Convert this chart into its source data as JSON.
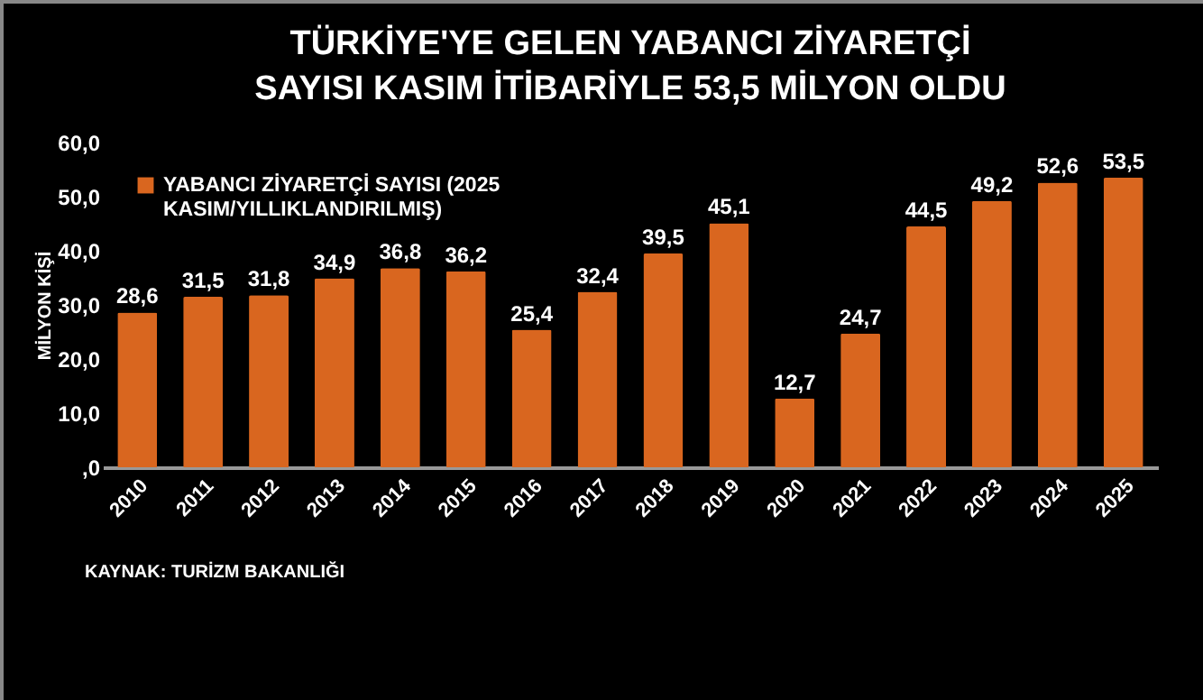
{
  "chart_data": {
    "type": "bar",
    "title": "TÜRKİYE'YE GELEN YABANCI ZİYARETÇİ SAYISI KASIM İTİBARİYLE 53,5 MİLYON OLDU",
    "ylabel": "MİLYON KİŞİ",
    "annotations": [
      "KAYNAK: TURİZM BAKANLIĞI"
    ],
    "categories": [
      "2010",
      "2011",
      "2012",
      "2013",
      "2014",
      "2015",
      "2016",
      "2017",
      "2018",
      "2019",
      "2020",
      "2021",
      "2022",
      "2023",
      "2024",
      "2025"
    ],
    "series": [
      {
        "name": "YABANCI ZİYARETÇİ SAYISI (2025 KASIM/YILLIKLANDIRILMIŞ)",
        "color": "#d9661f",
        "values": [
          28.6,
          31.5,
          31.8,
          34.9,
          36.8,
          36.2,
          25.4,
          32.4,
          39.5,
          45.1,
          12.7,
          24.7,
          44.5,
          49.2,
          52.6,
          53.5
        ],
        "value_labels": [
          "28,6",
          "31,5",
          "31,8",
          "34,9",
          "36,8",
          "36,2",
          "25,4",
          "32,4",
          "39,5",
          "45,1",
          "12,7",
          "24,7",
          "44,5",
          "49,2",
          "52,6",
          "53,5"
        ]
      }
    ],
    "ylim": [
      0,
      60
    ],
    "yticks": [
      {
        "value": 0,
        "label": ",0"
      },
      {
        "value": 10,
        "label": "10,0"
      },
      {
        "value": 20,
        "label": "20,0"
      },
      {
        "value": 30,
        "label": "30,0"
      },
      {
        "value": 40,
        "label": "40,0"
      },
      {
        "value": 50,
        "label": "50,0"
      },
      {
        "value": 60,
        "label": "60,0"
      }
    ],
    "legend": "top left",
    "grid": false
  }
}
